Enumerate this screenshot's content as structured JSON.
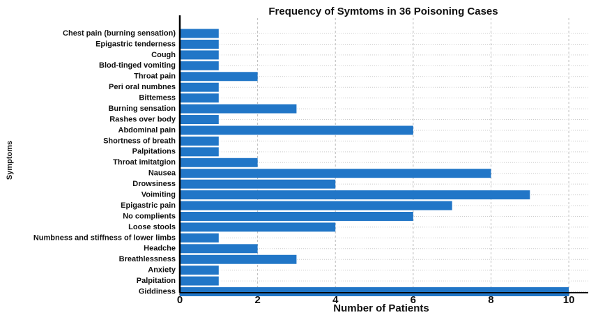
{
  "chart_data": {
    "type": "barh",
    "title": "Frequency of Symtoms in 36 Poisoning Cases",
    "x_label": "Number of Patients",
    "y_label": "Symptoms",
    "categories": [
      "Chest pain (burning sensation)",
      "Epigastric tenderness",
      "Cough",
      "Blod-tinged vomiting",
      "Throat pain",
      "Peri oral numbnes",
      "Bittemess",
      "Burning sensation",
      "Rashes over body",
      "Abdominal pain",
      "Shortness of breath",
      "Palpitations",
      "Throat imitatgion",
      "Nausea",
      "Drowsiness",
      "Voimiting",
      "Epigastric pain",
      "No complients",
      "Loose stools",
      "Numbness and stiffness of lower limbs",
      "Headche",
      "Breathlessness",
      "Anxiety",
      "Palpitation",
      "Giddiness"
    ],
    "values": [
      1,
      1,
      1,
      1,
      2,
      1,
      1,
      3,
      1,
      6,
      1,
      1,
      2,
      8,
      4,
      9,
      7,
      6,
      4,
      1,
      2,
      3,
      1,
      1,
      10
    ],
    "color": "#2176c7",
    "xlim": [
      0,
      10.5
    ],
    "xticks": [
      0,
      2,
      4,
      6,
      8,
      10
    ],
    "grid": true
  }
}
